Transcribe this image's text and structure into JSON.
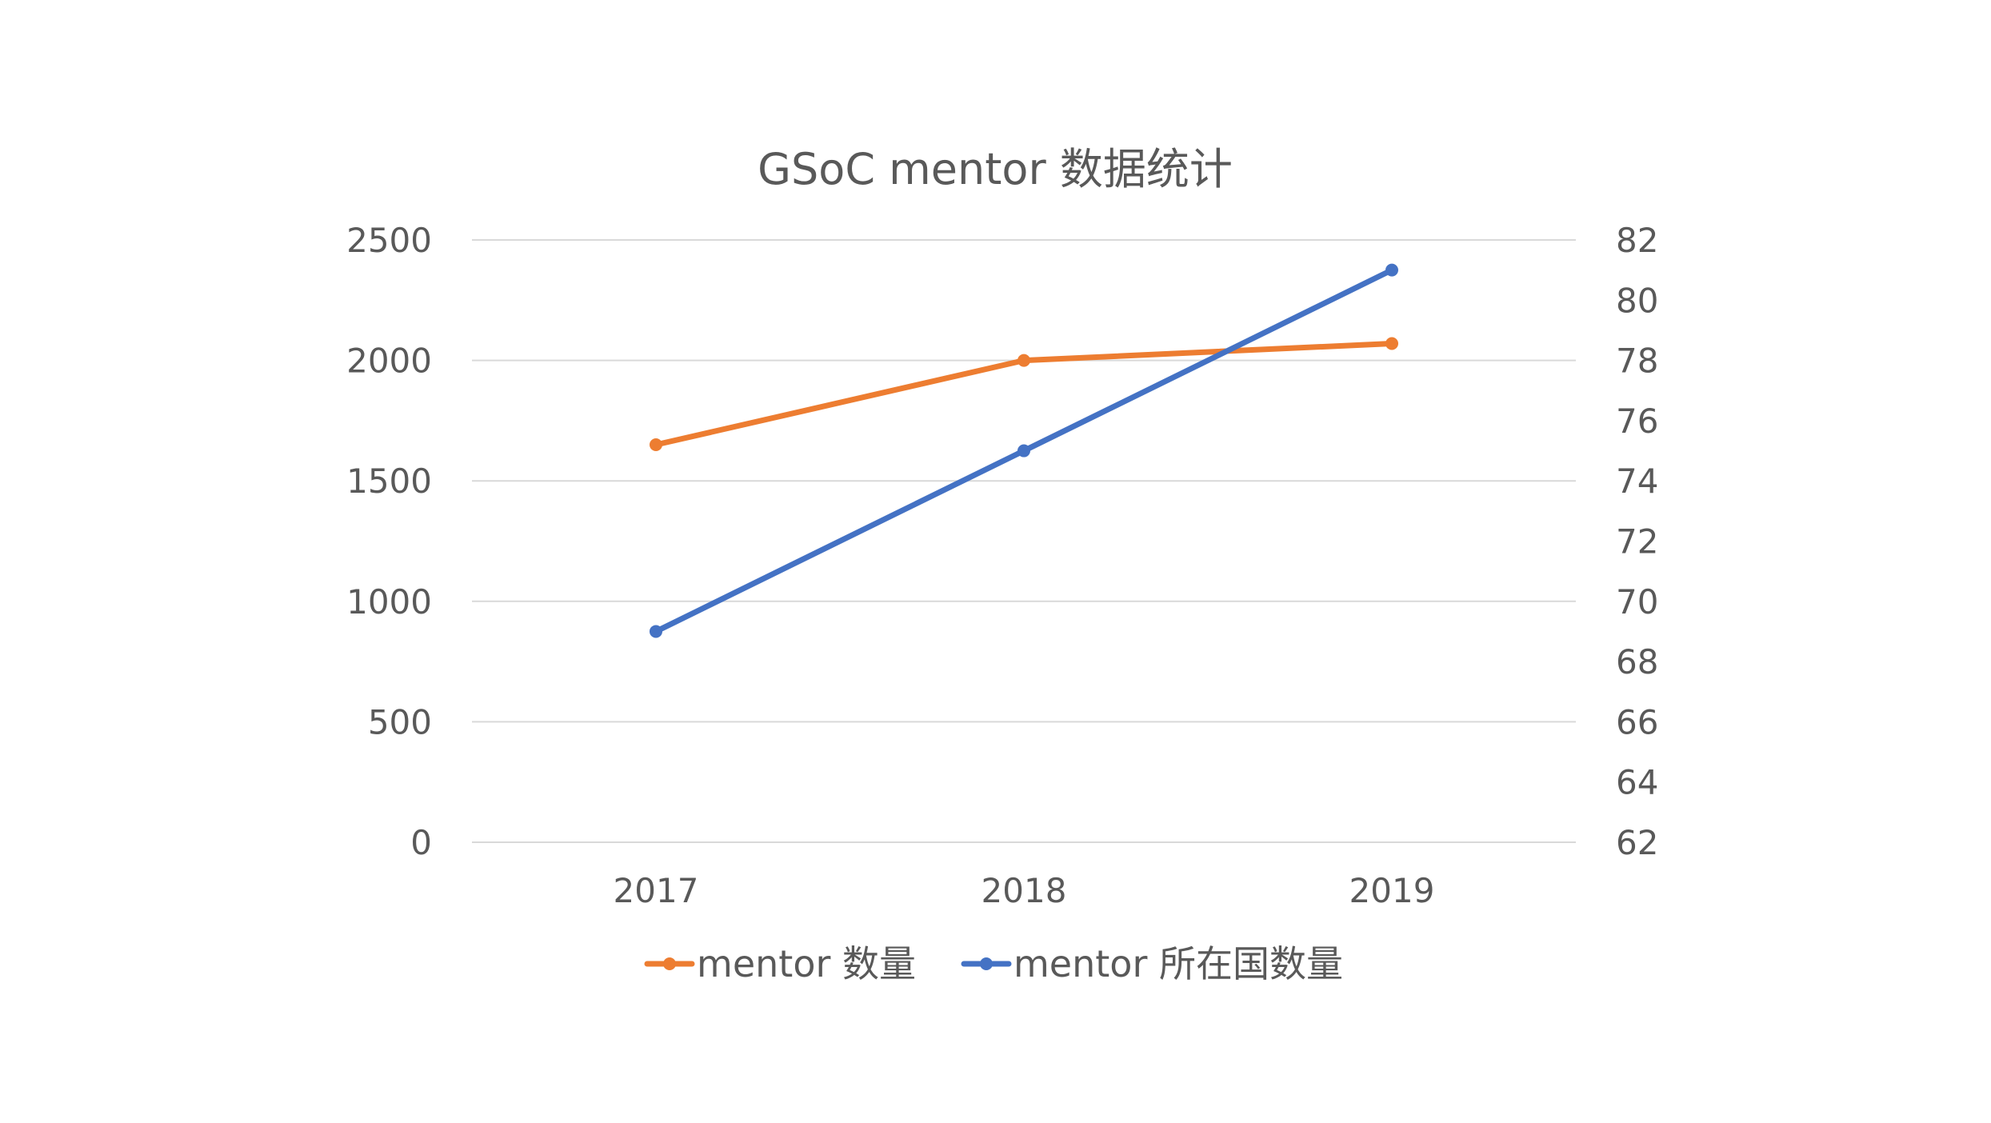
{
  "chart_data": {
    "type": "line",
    "title": "GSoC mentor 数据统计",
    "categories": [
      "2017",
      "2018",
      "2019"
    ],
    "y_axis_left": {
      "min": 0,
      "max": 2500,
      "step": 500,
      "ticks": [
        "0",
        "500",
        "1000",
        "1500",
        "2000",
        "2500"
      ]
    },
    "y_axis_right": {
      "min": 62,
      "max": 82,
      "step": 2,
      "ticks": [
        "62",
        "64",
        "66",
        "68",
        "70",
        "72",
        "74",
        "76",
        "78",
        "80",
        "82"
      ]
    },
    "grid": true,
    "legend_position": "bottom",
    "series": [
      {
        "name": "mentor 数量",
        "axis": "left",
        "color": "#ED7D31",
        "values": [
          1650,
          2000,
          2070
        ]
      },
      {
        "name": "mentor 所在国数量",
        "axis": "right",
        "color": "#4472C4",
        "values": [
          69,
          75,
          81
        ]
      }
    ]
  }
}
